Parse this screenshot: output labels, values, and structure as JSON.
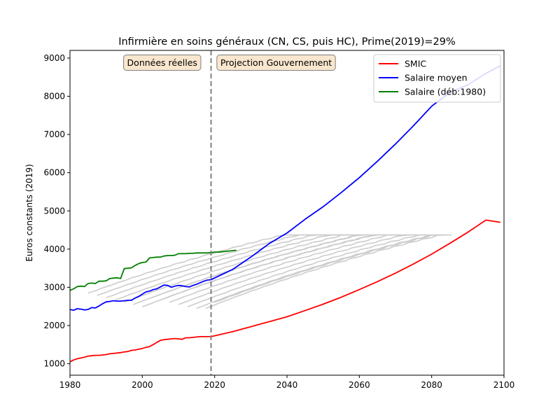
{
  "chart_data": {
    "type": "line",
    "title": "Infirmière en soins généraux (CN, CS, puis HC), Prime(2019)=29%",
    "xlabel": "",
    "ylabel": "Euros constants (2019)",
    "xlim": [
      1980,
      2100
    ],
    "ylim": [
      700,
      9200
    ],
    "xticks": [
      1980,
      2000,
      2020,
      2040,
      2060,
      2080,
      2100
    ],
    "yticks": [
      1000,
      2000,
      3000,
      4000,
      5000,
      6000,
      7000,
      8000,
      9000
    ],
    "grid": false,
    "legend_position": "top-right",
    "vline": {
      "x": 2019,
      "style": "dashed",
      "color": "#808080"
    },
    "annotations": [
      {
        "text": "Données réelles",
        "x": 2005.5,
        "y": 8880
      },
      {
        "text": "Projection Gouvernement",
        "x": 2037,
        "y": 8880
      }
    ],
    "series": [
      {
        "name": "SMIC",
        "color": "#ff0000",
        "x": [
          1980,
          1981,
          1982,
          1983,
          1984,
          1985,
          1986,
          1987,
          1988,
          1989,
          1990,
          1991,
          1992,
          1993,
          1994,
          1995,
          1996,
          1997,
          1998,
          1999,
          2000,
          2001,
          2002,
          2003,
          2004,
          2005,
          2006,
          2007,
          2008,
          2009,
          2010,
          2011,
          2012,
          2013,
          2014,
          2015,
          2016,
          2017,
          2018,
          2019,
          2025,
          2030,
          2035,
          2040,
          2045,
          2050,
          2055,
          2060,
          2065,
          2070,
          2075,
          2080,
          2085,
          2090,
          2095,
          2099
        ],
        "y": [
          1050,
          1100,
          1130,
          1150,
          1170,
          1200,
          1210,
          1220,
          1220,
          1230,
          1240,
          1260,
          1270,
          1280,
          1290,
          1310,
          1320,
          1350,
          1360,
          1380,
          1400,
          1430,
          1450,
          1500,
          1560,
          1610,
          1630,
          1640,
          1650,
          1660,
          1650,
          1640,
          1680,
          1680,
          1690,
          1700,
          1710,
          1710,
          1710,
          1710,
          1840,
          1970,
          2100,
          2230,
          2390,
          2560,
          2740,
          2940,
          3150,
          3370,
          3610,
          3870,
          4150,
          4440,
          4760,
          4700
        ]
      },
      {
        "name": "Salaire moyen",
        "color": "#0000ff",
        "x": [
          1980,
          1981,
          1982,
          1983,
          1984,
          1985,
          1986,
          1987,
          1988,
          1989,
          1990,
          1991,
          1992,
          1993,
          1994,
          1995,
          1996,
          1997,
          1998,
          1999,
          2000,
          2001,
          2002,
          2003,
          2004,
          2005,
          2006,
          2007,
          2008,
          2009,
          2010,
          2011,
          2012,
          2013,
          2014,
          2015,
          2016,
          2017,
          2018,
          2019,
          2025,
          2030,
          2035,
          2040,
          2045,
          2050,
          2055,
          2060,
          2065,
          2070,
          2075,
          2080,
          2085,
          2090,
          2095,
          2099
        ],
        "y": [
          2420,
          2400,
          2440,
          2430,
          2410,
          2420,
          2470,
          2460,
          2510,
          2570,
          2620,
          2630,
          2650,
          2640,
          2640,
          2650,
          2660,
          2660,
          2720,
          2760,
          2820,
          2880,
          2900,
          2940,
          2960,
          3010,
          3060,
          3050,
          3000,
          3030,
          3050,
          3040,
          3020,
          3010,
          3050,
          3080,
          3120,
          3160,
          3190,
          3200,
          3470,
          3790,
          4140,
          4420,
          4780,
          5110,
          5480,
          5870,
          6300,
          6750,
          7230,
          7740,
          8100,
          8300,
          8600,
          8800
        ]
      },
      {
        "name": "Salaire (déb:1980)",
        "color": "#008000",
        "x": [
          1980,
          1981,
          1982,
          1983,
          1984,
          1985,
          1986,
          1987,
          1988,
          1989,
          1990,
          1991,
          1992,
          1993,
          1994,
          1995,
          1996,
          1997,
          1998,
          1999,
          2000,
          2001,
          2002,
          2003,
          2004,
          2005,
          2006,
          2007,
          2008,
          2009,
          2010,
          2011,
          2012,
          2013,
          2014,
          2015,
          2016,
          2017,
          2018,
          2019,
          2020,
          2021,
          2022,
          2023,
          2024,
          2025,
          2026
        ],
        "y": [
          2920,
          2960,
          3020,
          3030,
          3020,
          3100,
          3110,
          3100,
          3160,
          3160,
          3170,
          3230,
          3240,
          3250,
          3230,
          3490,
          3500,
          3510,
          3570,
          3620,
          3650,
          3660,
          3770,
          3780,
          3790,
          3790,
          3820,
          3830,
          3830,
          3840,
          3880,
          3880,
          3880,
          3890,
          3890,
          3900,
          3900,
          3900,
          3900,
          3910,
          3920,
          3920,
          3930,
          3940,
          3950,
          3960,
          3970
        ]
      }
    ]
  }
}
